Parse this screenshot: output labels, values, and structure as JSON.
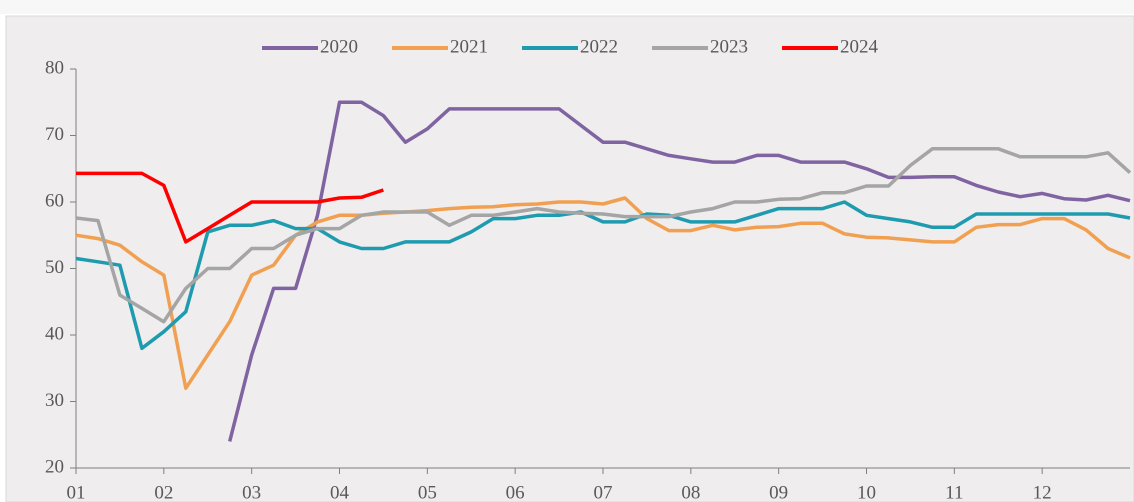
{
  "chart_data": {
    "type": "line",
    "x": [
      1,
      1.25,
      1.5,
      1.75,
      2,
      2.25,
      2.5,
      2.75,
      3,
      3.25,
      3.5,
      3.75,
      4,
      4.25,
      4.5,
      4.75,
      5,
      5.25,
      5.5,
      5.75,
      6,
      6.25,
      6.5,
      6.75,
      7,
      7.25,
      7.5,
      7.75,
      8,
      8.25,
      8.5,
      8.75,
      9,
      9.25,
      9.5,
      9.75,
      10,
      10.25,
      10.5,
      10.75,
      11,
      11.25,
      11.5,
      11.75,
      12,
      12.25,
      12.5,
      12.75,
      13
    ],
    "series": [
      {
        "name": "2020",
        "color": "#8064a2",
        "values": [
          null,
          null,
          null,
          null,
          null,
          null,
          null,
          24,
          37,
          47,
          47,
          58,
          75,
          75,
          73,
          69,
          71,
          74,
          74,
          74,
          74,
          74,
          74,
          71.5,
          69,
          69,
          68,
          67,
          66.5,
          66,
          66,
          67,
          67,
          66,
          66,
          66,
          65,
          63.7,
          63.7,
          63.8,
          63.8,
          62.5,
          61.5,
          60.8,
          61.3,
          60.5,
          60.3,
          61,
          60.2
        ]
      },
      {
        "name": "2021",
        "color": "#f0a050",
        "values": [
          55,
          54.5,
          53.5,
          51,
          49,
          32,
          37,
          42,
          49,
          50.5,
          55,
          57,
          58,
          58,
          58.3,
          58.5,
          58.7,
          59,
          59.2,
          59.3,
          59.6,
          59.7,
          60,
          60,
          59.7,
          60.6,
          57.5,
          55.7,
          55.7,
          56.5,
          55.8,
          56.2,
          56.3,
          56.8,
          56.8,
          55.2,
          54.7,
          54.6,
          54.3,
          54,
          54,
          56.2,
          56.6,
          56.6,
          57.5,
          57.5,
          55.8,
          53,
          51.6
        ]
      },
      {
        "name": "2022",
        "color": "#1f9bb0",
        "values": [
          51.5,
          51,
          50.5,
          38,
          40.5,
          43.5,
          55.5,
          56.5,
          56.5,
          57.2,
          56,
          56,
          54,
          53,
          53,
          54,
          54,
          54,
          55.5,
          57.5,
          57.5,
          58,
          58,
          58.5,
          57,
          57,
          58.2,
          58,
          57,
          57,
          57,
          58,
          59,
          59,
          59,
          60,
          58,
          57.5,
          57,
          56.2,
          56.2,
          58.2,
          58.2,
          58.2,
          58.2,
          58.2,
          58.2,
          58.2,
          57.6
        ]
      },
      {
        "name": "2023",
        "color": "#a5a5a5",
        "values": [
          57.6,
          57.2,
          46,
          44,
          42,
          47,
          50,
          50,
          53,
          53,
          55,
          56,
          56,
          58,
          58.5,
          58.5,
          58.5,
          56.5,
          58,
          58,
          58.5,
          59,
          58.5,
          58.3,
          58.2,
          57.8,
          57.8,
          57.8,
          58.5,
          59,
          60,
          60,
          60.4,
          60.5,
          61.4,
          61.4,
          62.4,
          62.4,
          65.5,
          68,
          68,
          68,
          68,
          66.8,
          66.8,
          66.8,
          66.8,
          67.4,
          64.4
        ]
      },
      {
        "name": "2024",
        "color": "#ff0000",
        "values": [
          64.3,
          64.3,
          64.3,
          64.3,
          62.5,
          54,
          56,
          58,
          60,
          60,
          60,
          60,
          60.6,
          60.7,
          61.8,
          null,
          null,
          null,
          null,
          null,
          null,
          null,
          null,
          null,
          null,
          null,
          null,
          null,
          null,
          null,
          null,
          null,
          null,
          null,
          null,
          null,
          null,
          null,
          null,
          null,
          null,
          null,
          null,
          null,
          null,
          null,
          null,
          null,
          null
        ]
      }
    ],
    "xlim": [
      1,
      13
    ],
    "xticks": [
      {
        "value": 1,
        "label": "01"
      },
      {
        "value": 2,
        "label": "02"
      },
      {
        "value": 3,
        "label": "03"
      },
      {
        "value": 4,
        "label": "04"
      },
      {
        "value": 5,
        "label": "05"
      },
      {
        "value": 6,
        "label": "06"
      },
      {
        "value": 7,
        "label": "07"
      },
      {
        "value": 8,
        "label": "08"
      },
      {
        "value": 9,
        "label": "09"
      },
      {
        "value": 10,
        "label": "10"
      },
      {
        "value": 11,
        "label": "11"
      },
      {
        "value": 12,
        "label": "12"
      }
    ],
    "ylim": [
      20,
      80
    ],
    "yticks": [
      20,
      30,
      40,
      50,
      60,
      70,
      80
    ],
    "grid": false,
    "legend": "top"
  }
}
